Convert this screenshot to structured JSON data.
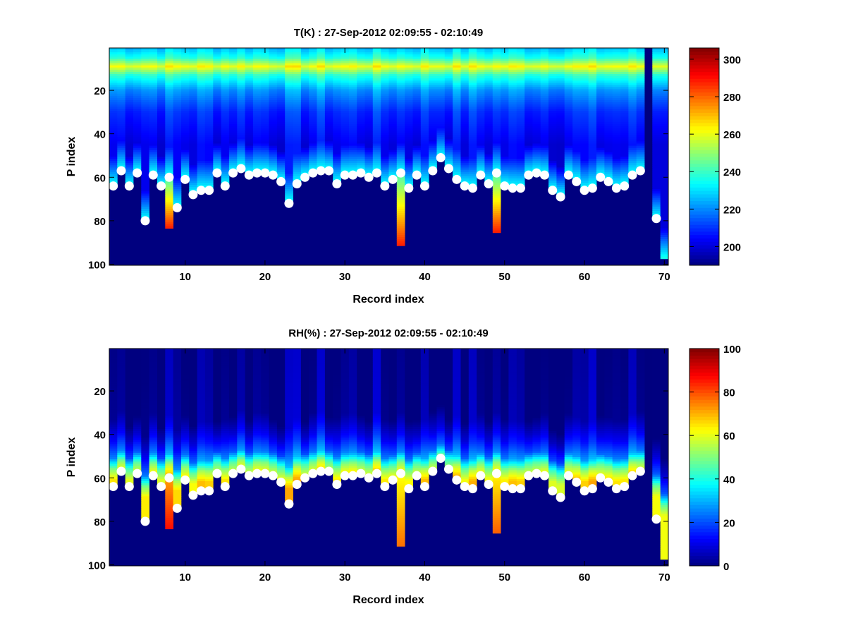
{
  "chart_data": [
    {
      "type": "heatmap",
      "title": "T(K) : 27-Sep-2012 02:09:55 - 02:10:49",
      "xlabel": "Record index",
      "ylabel": "P index",
      "xlim": [
        0.5,
        70.5
      ],
      "ylim": [
        0.5,
        100.5
      ],
      "y_reversed": true,
      "xticks": [
        10,
        20,
        30,
        40,
        50,
        60,
        70
      ],
      "yticks": [
        20,
        40,
        60,
        80,
        100
      ],
      "colormap": "jet",
      "clim": [
        190,
        306
      ],
      "colorbar_ticks": [
        200,
        220,
        240,
        260,
        280,
        300
      ],
      "profile_levels": [
        1,
        5,
        9,
        13,
        20,
        30,
        45
      ],
      "profile_values": [
        228,
        238,
        262,
        240,
        222,
        210,
        203
      ],
      "near_surface_value": 236,
      "deepest_value": 288,
      "missing_color": "#00007f"
    },
    {
      "type": "heatmap",
      "title": "RH(%) : 27-Sep-2012 02:09:55 - 02:10:49",
      "xlabel": "Record index",
      "ylabel": "P index",
      "xlim": [
        0.5,
        70.5
      ],
      "ylim": [
        0.5,
        100.5
      ],
      "y_reversed": true,
      "xticks": [
        10,
        20,
        30,
        40,
        50,
        60,
        70
      ],
      "yticks": [
        20,
        40,
        60,
        80,
        100
      ],
      "colormap": "jet",
      "clim": [
        0,
        100
      ],
      "colorbar_ticks": [
        0,
        20,
        40,
        60,
        80,
        100
      ],
      "profile_levels": [
        1,
        30,
        40,
        48,
        53,
        58
      ],
      "profile_values": [
        1,
        2,
        12,
        25,
        50,
        65
      ],
      "deepest_value": 75,
      "missing_color": "#00007f"
    }
  ],
  "records": [
    1,
    2,
    3,
    4,
    5,
    6,
    7,
    8,
    9,
    10,
    11,
    12,
    13,
    14,
    15,
    16,
    17,
    18,
    19,
    20,
    21,
    22,
    23,
    24,
    25,
    26,
    27,
    28,
    29,
    30,
    31,
    32,
    33,
    34,
    35,
    36,
    37,
    38,
    39,
    40,
    41,
    42,
    43,
    44,
    45,
    46,
    47,
    48,
    49,
    50,
    51,
    52,
    53,
    54,
    55,
    56,
    57,
    58,
    59,
    60,
    61,
    62,
    63,
    64,
    65,
    66,
    67,
    68,
    69,
    70
  ],
  "surface_marker_p_index": [
    64,
    57,
    64,
    58,
    80,
    59,
    64,
    60,
    74,
    61,
    68,
    66,
    66,
    58,
    64,
    58,
    56,
    59,
    58,
    58,
    59,
    62,
    72,
    63,
    60,
    58,
    57,
    57,
    63,
    59,
    59,
    58,
    60,
    58,
    64,
    61,
    58,
    65,
    59,
    64,
    57,
    51,
    56,
    61,
    64,
    65,
    59,
    63,
    58,
    64,
    65,
    65,
    59,
    58,
    59,
    66,
    69,
    59,
    62,
    66,
    65,
    60,
    62,
    65,
    64,
    59,
    57,
    null,
    79,
    null
  ],
  "deepest_data_p_index": [
    64,
    57,
    64,
    58,
    80,
    59,
    64,
    83,
    74,
    61,
    68,
    66,
    66,
    58,
    64,
    58,
    56,
    59,
    58,
    58,
    59,
    62,
    72,
    63,
    60,
    58,
    57,
    57,
    63,
    59,
    59,
    58,
    60,
    58,
    64,
    61,
    91,
    65,
    59,
    64,
    57,
    51,
    56,
    61,
    64,
    65,
    59,
    63,
    85,
    64,
    65,
    65,
    59,
    58,
    59,
    66,
    69,
    59,
    62,
    66,
    65,
    60,
    62,
    65,
    64,
    59,
    57,
    0,
    79,
    97
  ]
}
